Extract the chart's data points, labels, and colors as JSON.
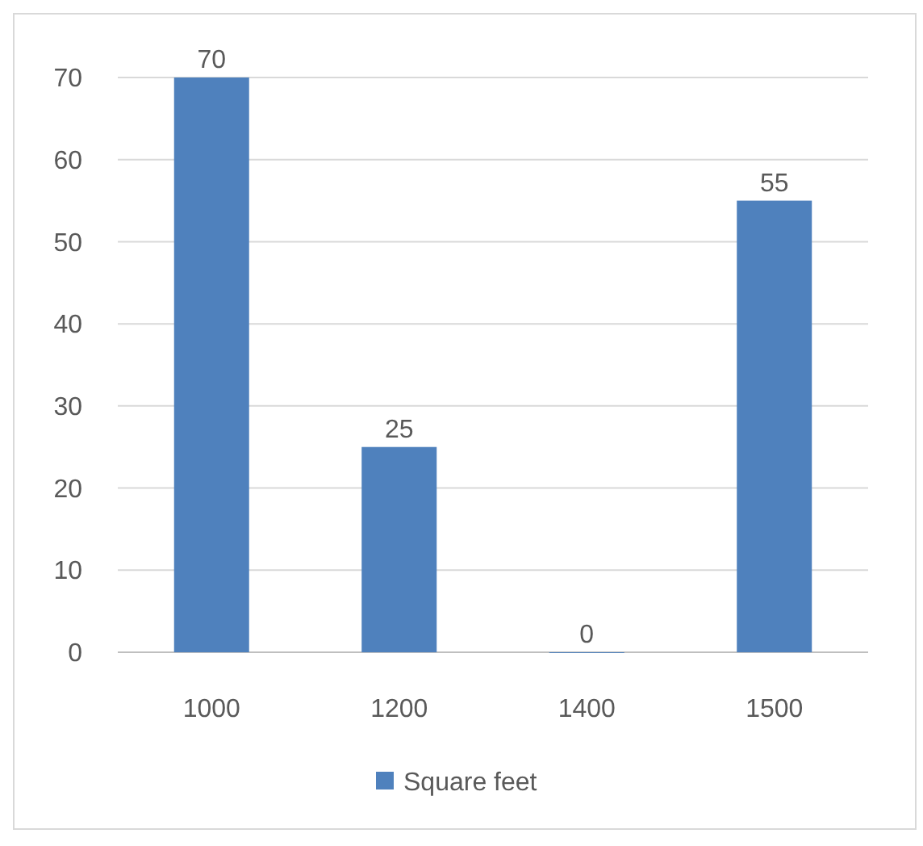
{
  "chart_data": {
    "type": "bar",
    "categories": [
      "1000",
      "1200",
      "1400",
      "1500"
    ],
    "series": [
      {
        "name": "Square feet",
        "color": "#4f81bd",
        "values": [
          70,
          25,
          0,
          55
        ]
      }
    ],
    "ylim": [
      0,
      70
    ],
    "yticks": [
      0,
      10,
      20,
      30,
      40,
      50,
      60,
      70
    ],
    "grid": "y",
    "data_labels": true,
    "legend": "bottom"
  }
}
